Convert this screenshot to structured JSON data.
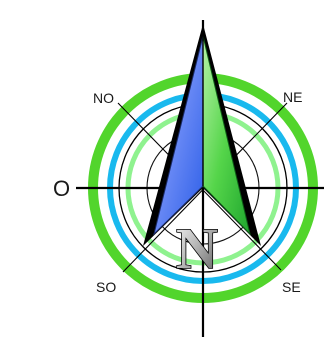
{
  "compass": {
    "labels": {
      "west": "O",
      "northwest": "NO",
      "northeast": "NE",
      "southwest": "SO",
      "southeast": "SE",
      "north_letter": "N"
    },
    "colors": {
      "outer_ring_green": "#52d52c",
      "cyan_ring": "#19b9ee",
      "light_green_ring": "#8ff28f",
      "arrow_left_blue": "#3b6cf0",
      "arrow_right_green": "#37c93d",
      "north_letter_gray": "#8a8a8a",
      "line_color": "#000000"
    },
    "icon": "compass-rose-icon"
  }
}
